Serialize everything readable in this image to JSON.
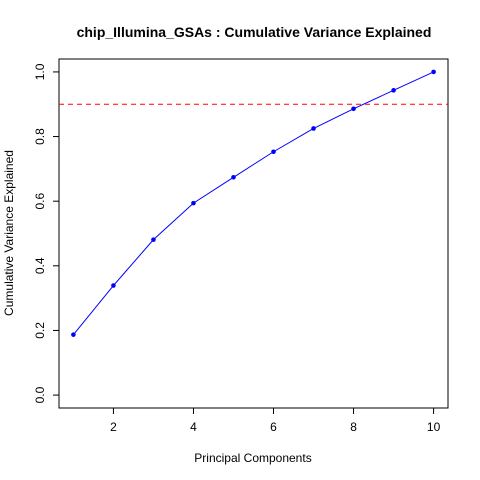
{
  "chart_data": {
    "type": "line",
    "title": "chip_Illumina_GSAs : Cumulative Variance Explained",
    "xlabel": "Principal Components",
    "ylabel": "Cumulative Variance Explained",
    "x": [
      1,
      2,
      3,
      4,
      5,
      6,
      7,
      8,
      9,
      10
    ],
    "series": [
      {
        "values": [
          0.187,
          0.339,
          0.481,
          0.594,
          0.674,
          0.753,
          0.825,
          0.886,
          0.943,
          1.0
        ],
        "color": "#0000FF"
      }
    ],
    "reference_line": {
      "y": 0.9,
      "color": "#FF0000",
      "style": "dashed"
    },
    "xlim": [
      0.64,
      10.36
    ],
    "ylim": [
      -0.04,
      1.04
    ],
    "x_ticks": [
      2,
      4,
      6,
      8,
      10
    ],
    "y_ticks": [
      0.0,
      0.2,
      0.4,
      0.6,
      0.8,
      1.0
    ],
    "x_tick_labels": [
      "2",
      "4",
      "6",
      "8",
      "10"
    ],
    "y_tick_labels": [
      "0.0",
      "0.2",
      "0.4",
      "0.6",
      "0.8",
      "1.0"
    ],
    "grid": false,
    "legend": "none"
  }
}
